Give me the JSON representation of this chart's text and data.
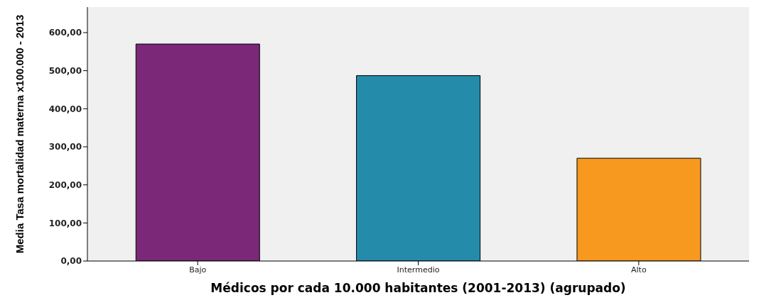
{
  "chart_data": {
    "type": "bar",
    "xlabel": "Médicos por cada 10.000 habitantes (2001-2013) (agrupado)",
    "ylabel": "Media Tasa mortalidad materna x100.000 - 2013",
    "categories": [
      "Bajo",
      "Intermedio",
      "Alto"
    ],
    "values": [
      570,
      487,
      270
    ],
    "colors": [
      "#7b2878",
      "#258bab",
      "#f7991f"
    ],
    "ylim": [
      0,
      667
    ],
    "yticks": [
      {
        "value": 0,
        "label": "0,00"
      },
      {
        "value": 100,
        "label": "100,00"
      },
      {
        "value": 200,
        "label": "200,00"
      },
      {
        "value": 300,
        "label": "300,00"
      },
      {
        "value": 400,
        "label": "400,00"
      },
      {
        "value": 500,
        "label": "500,00"
      },
      {
        "value": 600,
        "label": "600,00"
      }
    ],
    "grid": false,
    "legend": false
  }
}
